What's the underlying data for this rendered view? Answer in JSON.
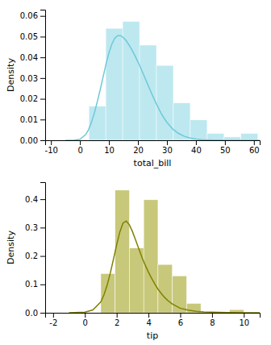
{
  "chart_data": [
    {
      "type": "histogram",
      "xlabel": "total_bill",
      "ylabel": "Density",
      "xlim": [
        -12,
        62
      ],
      "ylim": [
        0,
        0.063
      ],
      "xticks": [
        -10,
        0,
        10,
        20,
        30,
        40,
        50,
        60
      ],
      "yticks": [
        {
          "value": 0.0,
          "label": "0.00"
        },
        0.01,
        0.02,
        0.03,
        0.04,
        0.05,
        0.06
      ],
      "series": [
        {
          "type": "bar",
          "color": "#bde8f0",
          "bins": [
            3.07,
            8.9,
            14.73,
            20.56,
            26.39,
            32.22,
            38.05,
            43.88,
            49.71,
            55.54,
            61.37
          ],
          "values": [
            0.0164,
            0.054,
            0.0573,
            0.0459,
            0.0361,
            0.018,
            0.0098,
            0.0033,
            0.0016,
            0.0033
          ]
        },
        {
          "type": "line",
          "color": "#6ec9d8",
          "x": [
            -5,
            -2,
            0,
            2,
            3,
            4,
            5,
            6,
            7,
            8,
            9,
            10,
            11,
            12,
            13,
            14,
            15,
            16,
            17,
            18,
            19,
            20,
            21,
            22,
            23,
            24,
            25,
            26,
            27,
            28,
            29,
            30,
            32,
            34,
            36,
            38,
            40,
            42,
            44,
            46,
            48,
            50,
            52,
            55,
            58,
            62
          ],
          "values": [
            0.0,
            0.0001,
            0.0005,
            0.0028,
            0.0052,
            0.0088,
            0.0133,
            0.0187,
            0.0245,
            0.0307,
            0.0368,
            0.0422,
            0.0464,
            0.0492,
            0.0505,
            0.0505,
            0.0495,
            0.0479,
            0.0458,
            0.0434,
            0.0407,
            0.0378,
            0.0347,
            0.0315,
            0.0282,
            0.0249,
            0.0217,
            0.0186,
            0.0157,
            0.013,
            0.0107,
            0.0086,
            0.0054,
            0.0033,
            0.0019,
            0.0011,
            0.0006,
            0.0003,
            0.0002,
            0.0001,
            0.0001,
            0.0,
            0.0,
            0.0,
            0.0,
            0.0
          ]
        }
      ]
    },
    {
      "type": "histogram",
      "xlabel": "tip",
      "ylabel": "Density",
      "xlim": [
        -2.5,
        11
      ],
      "ylim": [
        0,
        0.46
      ],
      "xticks": [
        -2,
        0,
        2,
        4,
        6,
        8,
        10
      ],
      "yticks": [
        {
          "value": 0.0,
          "label": "0.0"
        },
        0.1,
        0.2,
        0.3,
        0.4
      ],
      "series": [
        {
          "type": "bar",
          "color": "#c8c87a",
          "bins": [
            1.0,
            1.9,
            2.8,
            3.7,
            4.6,
            5.5,
            6.4,
            7.3,
            8.2,
            9.1,
            10.0
          ],
          "values": [
            0.138,
            0.432,
            0.228,
            0.398,
            0.17,
            0.13,
            0.033,
            0.0,
            0.0,
            0.011
          ]
        },
        {
          "type": "line",
          "color": "#808000",
          "x": [
            -1,
            0,
            0.5,
            1.0,
            1.2,
            1.4,
            1.6,
            1.8,
            2.0,
            2.2,
            2.4,
            2.6,
            2.8,
            3.0,
            3.2,
            3.4,
            3.6,
            3.8,
            4.0,
            4.2,
            4.4,
            4.6,
            4.8,
            5.0,
            5.2,
            5.5,
            6.0,
            6.5,
            7.0,
            7.5,
            8.0,
            9.0,
            10.0,
            11.0
          ],
          "values": [
            0.0,
            0.002,
            0.01,
            0.038,
            0.063,
            0.097,
            0.14,
            0.189,
            0.24,
            0.285,
            0.316,
            0.323,
            0.31,
            0.285,
            0.255,
            0.224,
            0.194,
            0.167,
            0.143,
            0.121,
            0.101,
            0.083,
            0.068,
            0.055,
            0.044,
            0.031,
            0.016,
            0.009,
            0.005,
            0.003,
            0.002,
            0.001,
            0.0,
            0.0
          ]
        }
      ]
    }
  ]
}
